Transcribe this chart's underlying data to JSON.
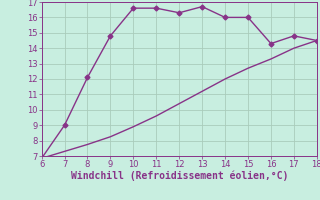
{
  "xlabel": "Windchill (Refroidissement éolien,°C)",
  "xlim": [
    6,
    18
  ],
  "ylim": [
    7,
    17
  ],
  "xticks": [
    6,
    7,
    8,
    9,
    10,
    11,
    12,
    13,
    14,
    15,
    16,
    17,
    18
  ],
  "yticks": [
    7,
    8,
    9,
    10,
    11,
    12,
    13,
    14,
    15,
    16,
    17
  ],
  "line1_x": [
    6,
    7,
    8,
    9,
    10,
    11,
    12,
    13,
    14,
    15,
    16,
    17,
    18
  ],
  "line1_y": [
    6.85,
    9.0,
    12.1,
    14.8,
    16.6,
    16.6,
    16.3,
    16.7,
    16.0,
    16.0,
    14.3,
    14.8,
    14.5
  ],
  "line2_x": [
    6,
    7,
    8,
    9,
    10,
    11,
    12,
    13,
    14,
    15,
    16,
    17,
    18
  ],
  "line2_y": [
    6.85,
    7.3,
    7.75,
    8.25,
    8.9,
    9.6,
    10.4,
    11.2,
    12.0,
    12.7,
    13.3,
    14.0,
    14.5
  ],
  "line_color": "#883388",
  "bg_color": "#c8eee0",
  "grid_color": "#aaccbb",
  "axis_label_color": "#883388",
  "tick_color": "#883388",
  "marker": "D",
  "marker_size": 2.5,
  "line_width": 1.0,
  "xlabel_fontsize": 7.0,
  "tick_fontsize": 6.0
}
